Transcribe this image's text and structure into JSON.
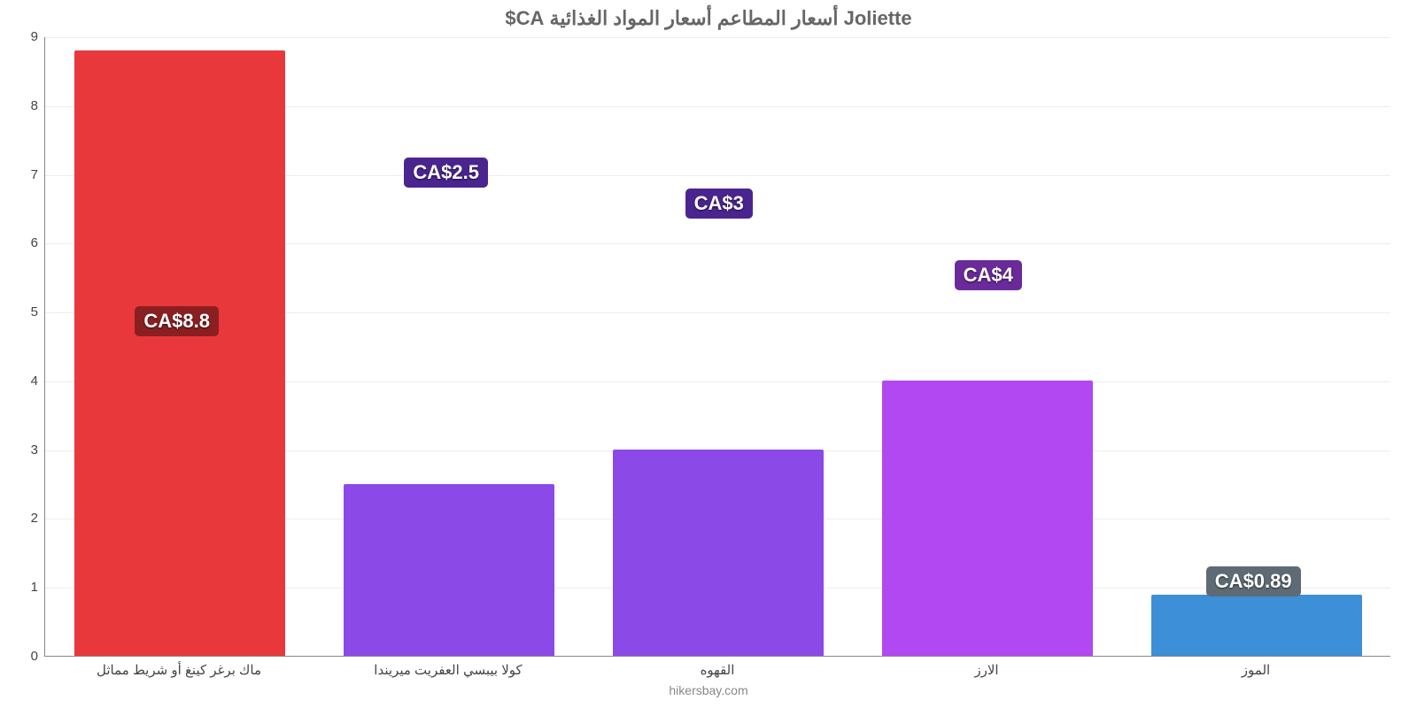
{
  "chart": {
    "type": "bar",
    "title": "Joliette أسعار المطاعم أسعار المواد الغذائية CA$",
    "title_fontsize": 22,
    "title_color": "#666666",
    "title_rtl": true,
    "background_color": "#ffffff",
    "grid_color": "#cccccc",
    "axis_color": "#888888",
    "label_fontsize": 15,
    "value_badge_fontsize": 22,
    "ylim": [
      0,
      9
    ],
    "ytick_step": 1,
    "bar_width_ratio": 0.78,
    "categories": [
      "ماك برغر كينغ أو شريط مماثل",
      "كولا بيبسي العفريت ميريندا",
      "القهوه",
      "الارز",
      "الموز"
    ],
    "values": [
      8.8,
      2.5,
      3,
      4,
      0.89
    ],
    "value_labels": [
      "CA$8.8",
      "CA$2.5",
      "CA$3",
      "CA$4",
      "CA$0.89"
    ],
    "bar_colors": [
      "#e8383b",
      "#8b49e8",
      "#8b49e8",
      "#b148f2",
      "#3d8fd8"
    ],
    "badge_bg_colors": [
      "#8a1f21",
      "#4a2590",
      "#4a2590",
      "#6a2a9a",
      "#5f6b74"
    ],
    "credit": "hikersbay.com",
    "credit_fontsize": 14,
    "value_badge_vpos": [
      0.54,
      0.78,
      0.73,
      0.615,
      0.12
    ]
  }
}
